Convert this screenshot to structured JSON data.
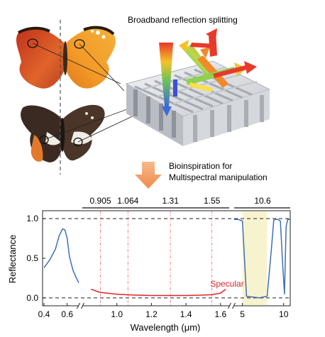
{
  "figure": {
    "top_label": "Broadband reflection splitting",
    "middle_label_line1": "Bioinspiration for",
    "middle_label_line2": "Multispectral manipulation"
  },
  "chart_data": {
    "type": "line",
    "ylabel": "Reflectance",
    "xlabel": "Wavelength (μm)",
    "ylim": [
      -0.1,
      1.1
    ],
    "y_ticks": [
      "0.0",
      "0.5",
      "1.0"
    ],
    "panels": [
      {
        "xlim": [
          0.4,
          0.7
        ],
        "x_ticks": [
          "0.4",
          "0.6"
        ],
        "tick_values": [
          0.4,
          0.6
        ]
      },
      {
        "xlim": [
          0.8,
          1.65
        ],
        "x_ticks": [
          "1.0",
          "1.2",
          "1.4",
          "1.6"
        ],
        "tick_values": [
          1.0,
          1.2,
          1.4,
          1.6
        ]
      },
      {
        "xlim": [
          4,
          10.8
        ],
        "x_ticks": [
          "5",
          "10"
        ],
        "tick_values": [
          5,
          10
        ]
      }
    ],
    "marked_wavelengths": [
      {
        "label": "0.905",
        "x": 0.905
      },
      {
        "label": "1.064",
        "x": 1.064
      },
      {
        "label": "1.31",
        "x": 1.31
      },
      {
        "label": "1.55",
        "x": 1.55
      },
      {
        "label": "10.6",
        "x": 10.6
      }
    ],
    "highlight_band": [
      5,
      8
    ],
    "annotation": "Specular",
    "series": [
      {
        "color": "#3f6fb5",
        "panel": 0,
        "x": [
          0.4,
          0.45,
          0.5,
          0.53,
          0.56,
          0.58,
          0.6,
          0.62,
          0.65,
          0.68,
          0.7
        ],
        "y": [
          0.38,
          0.48,
          0.62,
          0.78,
          0.87,
          0.86,
          0.75,
          0.52,
          0.35,
          0.25,
          0.19
        ]
      },
      {
        "color": "#e0252a",
        "panel": 1,
        "x": [
          0.85,
          0.9,
          1.0,
          1.1,
          1.2,
          1.3,
          1.4,
          1.5,
          1.55,
          1.6,
          1.63
        ],
        "y": [
          0.11,
          0.07,
          0.045,
          0.035,
          0.03,
          0.03,
          0.03,
          0.035,
          0.04,
          0.06,
          0.11
        ]
      },
      {
        "color": "#3f6fb5",
        "panel": 2,
        "x": [
          4.0,
          4.5,
          5.0,
          5.2,
          5.5,
          7.0,
          8.0,
          8.5,
          8.8,
          9.0,
          9.3,
          9.6,
          9.9,
          10.1,
          10.3,
          10.5,
          10.8
        ],
        "y": [
          0.99,
          0.99,
          0.97,
          0.6,
          0.02,
          0.0,
          0.02,
          0.6,
          0.98,
          0.99,
          0.99,
          0.97,
          0.4,
          0.05,
          0.9,
          0.99,
          0.99
        ]
      }
    ]
  }
}
